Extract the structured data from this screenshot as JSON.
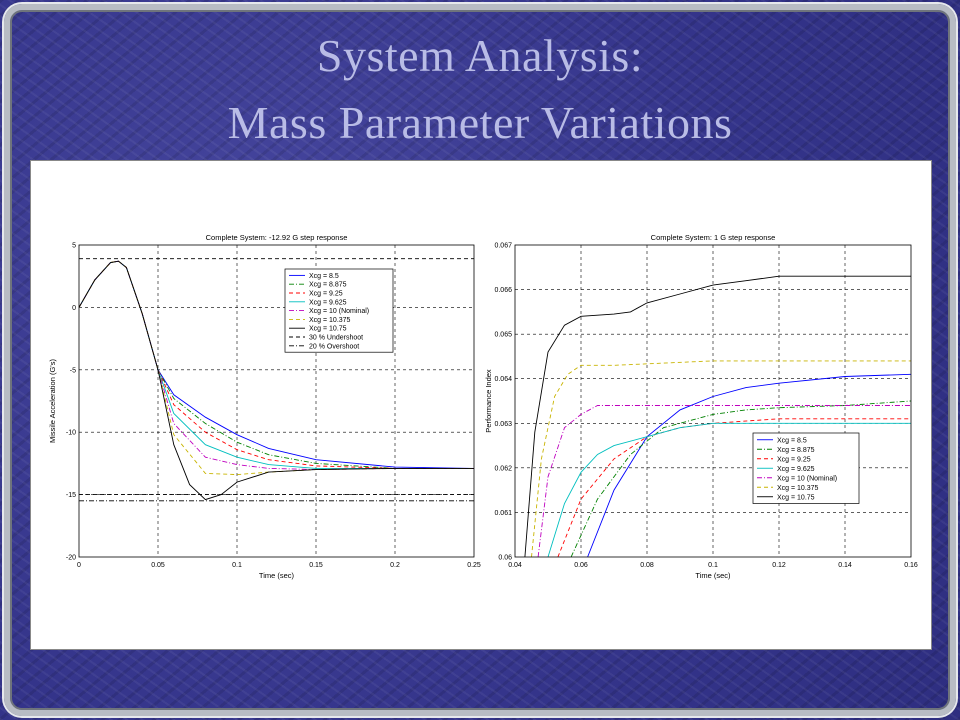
{
  "slide": {
    "title_line1": "System Analysis:",
    "title_line2": "Mass Parameter Variations"
  },
  "chart_data": [
    {
      "type": "line",
      "title": "Complete System: -12.92 G step response",
      "xlabel": "Time (sec)",
      "ylabel": "Missile Acceleration (G's)",
      "xlim": [
        0,
        0.25
      ],
      "ylim": [
        -20,
        5
      ],
      "xticks": [
        0,
        0.05,
        0.1,
        0.15,
        0.2,
        0.25
      ],
      "xtick_labels": [
        "0",
        "0.05",
        "0.1",
        "0.15",
        "0.2",
        "0.25"
      ],
      "yticks": [
        -20,
        -15,
        -10,
        -5,
        0,
        5
      ],
      "ytick_labels": [
        "-20",
        "-15",
        "-10",
        "-5",
        "0",
        "5"
      ],
      "grid": true,
      "legend_position": "top-right",
      "series": [
        {
          "name": "Xcg = 8.5",
          "color": "#0000ff",
          "dash": "solid",
          "points": [
            [
              0,
              0
            ],
            [
              0.01,
              2.2
            ],
            [
              0.02,
              3.6
            ],
            [
              0.025,
              3.7
            ],
            [
              0.03,
              3.2
            ],
            [
              0.04,
              -0.5
            ],
            [
              0.05,
              -5.0
            ],
            [
              0.06,
              -7.0
            ],
            [
              0.08,
              -8.8
            ],
            [
              0.1,
              -10.2
            ],
            [
              0.12,
              -11.3
            ],
            [
              0.15,
              -12.2
            ],
            [
              0.2,
              -12.8
            ],
            [
              0.25,
              -12.9
            ]
          ]
        },
        {
          "name": "Xcg = 8.875",
          "color": "#008000",
          "dash": "dashdot",
          "points": [
            [
              0,
              0
            ],
            [
              0.01,
              2.2
            ],
            [
              0.02,
              3.6
            ],
            [
              0.025,
              3.7
            ],
            [
              0.03,
              3.2
            ],
            [
              0.04,
              -0.5
            ],
            [
              0.05,
              -5.0
            ],
            [
              0.06,
              -7.3
            ],
            [
              0.08,
              -9.3
            ],
            [
              0.1,
              -10.8
            ],
            [
              0.12,
              -11.8
            ],
            [
              0.15,
              -12.5
            ],
            [
              0.2,
              -12.9
            ],
            [
              0.25,
              -12.9
            ]
          ]
        },
        {
          "name": "Xcg = 9.25",
          "color": "#ff0000",
          "dash": "dashed",
          "points": [
            [
              0,
              0
            ],
            [
              0.01,
              2.2
            ],
            [
              0.02,
              3.6
            ],
            [
              0.025,
              3.7
            ],
            [
              0.03,
              3.2
            ],
            [
              0.04,
              -0.5
            ],
            [
              0.05,
              -5.0
            ],
            [
              0.06,
              -7.8
            ],
            [
              0.08,
              -10.0
            ],
            [
              0.1,
              -11.4
            ],
            [
              0.12,
              -12.2
            ],
            [
              0.15,
              -12.7
            ],
            [
              0.2,
              -12.9
            ],
            [
              0.25,
              -12.9
            ]
          ]
        },
        {
          "name": "Xcg = 9.625",
          "color": "#00bfbf",
          "dash": "solid",
          "points": [
            [
              0,
              0
            ],
            [
              0.01,
              2.2
            ],
            [
              0.02,
              3.6
            ],
            [
              0.025,
              3.7
            ],
            [
              0.03,
              3.2
            ],
            [
              0.04,
              -0.5
            ],
            [
              0.05,
              -5.0
            ],
            [
              0.06,
              -8.5
            ],
            [
              0.08,
              -11.0
            ],
            [
              0.1,
              -12.0
            ],
            [
              0.12,
              -12.6
            ],
            [
              0.15,
              -12.9
            ],
            [
              0.2,
              -12.9
            ],
            [
              0.25,
              -12.9
            ]
          ]
        },
        {
          "name": "Xcg = 10 (Nominal)",
          "color": "#bf00bf",
          "dash": "dashdot",
          "points": [
            [
              0,
              0
            ],
            [
              0.01,
              2.2
            ],
            [
              0.02,
              3.6
            ],
            [
              0.025,
              3.7
            ],
            [
              0.03,
              3.2
            ],
            [
              0.04,
              -0.5
            ],
            [
              0.05,
              -5.0
            ],
            [
              0.06,
              -9.3
            ],
            [
              0.08,
              -12.0
            ],
            [
              0.1,
              -12.6
            ],
            [
              0.12,
              -12.9
            ],
            [
              0.15,
              -13.0
            ],
            [
              0.2,
              -12.9
            ],
            [
              0.25,
              -12.9
            ]
          ]
        },
        {
          "name": "Xcg = 10.375",
          "color": "#c8b400",
          "dash": "dashed",
          "points": [
            [
              0,
              0
            ],
            [
              0.01,
              2.2
            ],
            [
              0.02,
              3.6
            ],
            [
              0.025,
              3.7
            ],
            [
              0.03,
              3.2
            ],
            [
              0.04,
              -0.5
            ],
            [
              0.05,
              -5.0
            ],
            [
              0.06,
              -10.2
            ],
            [
              0.08,
              -13.3
            ],
            [
              0.1,
              -13.4
            ],
            [
              0.12,
              -13.2
            ],
            [
              0.15,
              -13.0
            ],
            [
              0.2,
              -12.9
            ],
            [
              0.25,
              -12.9
            ]
          ]
        },
        {
          "name": "Xcg = 10.75",
          "color": "#000000",
          "dash": "solid",
          "points": [
            [
              0,
              0
            ],
            [
              0.01,
              2.2
            ],
            [
              0.02,
              3.6
            ],
            [
              0.025,
              3.7
            ],
            [
              0.03,
              3.2
            ],
            [
              0.04,
              -0.5
            ],
            [
              0.05,
              -5.0
            ],
            [
              0.06,
              -11.0
            ],
            [
              0.07,
              -14.2
            ],
            [
              0.08,
              -15.4
            ],
            [
              0.09,
              -15.0
            ],
            [
              0.1,
              -14.0
            ],
            [
              0.12,
              -13.2
            ],
            [
              0.15,
              -13.0
            ],
            [
              0.2,
              -12.9
            ],
            [
              0.25,
              -12.9
            ]
          ]
        },
        {
          "name": "30 % Undershoot",
          "color": "#000000",
          "dash": "dashed",
          "points": [
            [
              0,
              3.9
            ],
            [
              0.25,
              3.9
            ]
          ]
        },
        {
          "name": "20 % Overshoot",
          "color": "#000000",
          "dash": "dashdot",
          "points": [
            [
              0,
              -15.5
            ],
            [
              0.25,
              -15.5
            ]
          ]
        }
      ],
      "extra_lines": [
        {
          "color": "#000000",
          "dash": "dashed",
          "points": [
            [
              0,
              -15.0
            ],
            [
              0.25,
              -15.0
            ]
          ]
        }
      ]
    },
    {
      "type": "line",
      "title": "Complete System: 1 G step response",
      "xlabel": "Time (sec)",
      "ylabel": "Performance Index",
      "xlim": [
        0.04,
        0.16
      ],
      "ylim": [
        0.06,
        0.067
      ],
      "xticks": [
        0.04,
        0.06,
        0.08,
        0.1,
        0.12,
        0.14,
        0.16
      ],
      "xtick_labels": [
        "0.04",
        "0.06",
        "0.08",
        "0.1",
        "0.12",
        "0.14",
        "0.16"
      ],
      "yticks": [
        0.06,
        0.061,
        0.062,
        0.063,
        0.064,
        0.065,
        0.066,
        0.067
      ],
      "ytick_labels": [
        "0.06",
        "0.061",
        "0.062",
        "0.063",
        "0.064",
        "0.065",
        "0.066",
        "0.067"
      ],
      "grid": true,
      "legend_position": "bottom-right",
      "series": [
        {
          "name": "Xcg = 8.5",
          "color": "#0000ff",
          "dash": "solid",
          "points": [
            [
              0.062,
              0.06
            ],
            [
              0.07,
              0.0615
            ],
            [
              0.08,
              0.0627
            ],
            [
              0.09,
              0.0633
            ],
            [
              0.1,
              0.0636
            ],
            [
              0.11,
              0.0638
            ],
            [
              0.12,
              0.0639
            ],
            [
              0.14,
              0.06405
            ],
            [
              0.16,
              0.0641
            ]
          ]
        },
        {
          "name": "Xcg = 8.875",
          "color": "#008000",
          "dash": "dashdot",
          "points": [
            [
              0.057,
              0.06
            ],
            [
              0.065,
              0.0613
            ],
            [
              0.075,
              0.0623
            ],
            [
              0.085,
              0.0629
            ],
            [
              0.1,
              0.0632
            ],
            [
              0.11,
              0.0633
            ],
            [
              0.12,
              0.06335
            ],
            [
              0.14,
              0.0634
            ],
            [
              0.16,
              0.0635
            ]
          ]
        },
        {
          "name": "Xcg = 9.25",
          "color": "#ff0000",
          "dash": "dashed",
          "points": [
            [
              0.053,
              0.06
            ],
            [
              0.06,
              0.0613
            ],
            [
              0.07,
              0.0622
            ],
            [
              0.08,
              0.0627
            ],
            [
              0.09,
              0.0629
            ],
            [
              0.1,
              0.063
            ],
            [
              0.12,
              0.0631
            ],
            [
              0.16,
              0.0631
            ]
          ]
        },
        {
          "name": "Xcg = 9.625",
          "color": "#00bfbf",
          "dash": "solid",
          "points": [
            [
              0.05,
              0.06
            ],
            [
              0.055,
              0.0612
            ],
            [
              0.06,
              0.0619
            ],
            [
              0.065,
              0.0623
            ],
            [
              0.07,
              0.0625
            ],
            [
              0.08,
              0.0627
            ],
            [
              0.09,
              0.0629
            ],
            [
              0.1,
              0.063
            ],
            [
              0.12,
              0.063
            ],
            [
              0.16,
              0.063
            ]
          ]
        },
        {
          "name": "Xcg = 10 (Nominal)",
          "color": "#bf00bf",
          "dash": "dashdot",
          "points": [
            [
              0.047,
              0.06
            ],
            [
              0.05,
              0.0618
            ],
            [
              0.055,
              0.0629
            ],
            [
              0.06,
              0.0632
            ],
            [
              0.065,
              0.0634
            ],
            [
              0.08,
              0.0634
            ],
            [
              0.1,
              0.0634
            ],
            [
              0.12,
              0.0634
            ],
            [
              0.16,
              0.0634
            ]
          ]
        },
        {
          "name": "Xcg = 10.375",
          "color": "#c8b400",
          "dash": "dashed",
          "points": [
            [
              0.045,
              0.06
            ],
            [
              0.048,
              0.0622
            ],
            [
              0.052,
              0.0636
            ],
            [
              0.056,
              0.0641
            ],
            [
              0.06,
              0.0643
            ],
            [
              0.07,
              0.0643
            ],
            [
              0.1,
              0.0644
            ],
            [
              0.16,
              0.0644
            ]
          ]
        },
        {
          "name": "Xcg = 10.75",
          "color": "#000000",
          "dash": "solid",
          "points": [
            [
              0.043,
              0.06
            ],
            [
              0.046,
              0.0628
            ],
            [
              0.05,
              0.0646
            ],
            [
              0.055,
              0.0652
            ],
            [
              0.06,
              0.0654
            ],
            [
              0.07,
              0.06545
            ],
            [
              0.075,
              0.0655
            ],
            [
              0.08,
              0.0657
            ],
            [
              0.09,
              0.0659
            ],
            [
              0.1,
              0.0661
            ],
            [
              0.11,
              0.0662
            ],
            [
              0.12,
              0.0663
            ],
            [
              0.16,
              0.0663
            ]
          ]
        }
      ],
      "extra_lines": []
    }
  ]
}
